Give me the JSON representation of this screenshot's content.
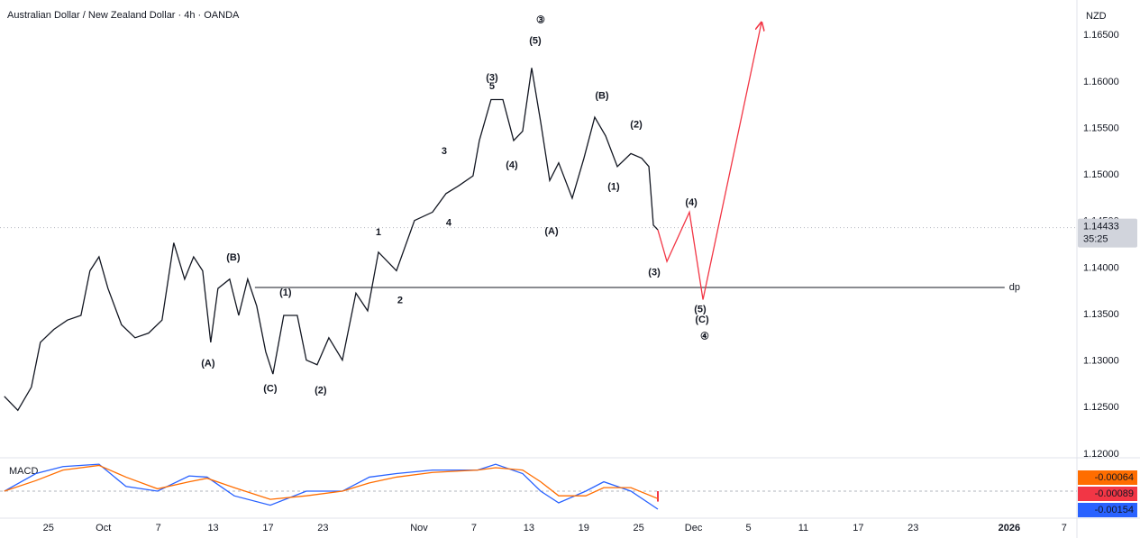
{
  "header": {
    "title": "Australian Dollar / New Zealand Dollar · 4h · OANDA",
    "currency": "NZD"
  },
  "chart_data": {
    "type": "line",
    "xlim": [
      -5.3,
      112.4
    ],
    "xticks": [
      {
        "value": 0,
        "label": "25"
      },
      {
        "value": 6,
        "label": "Oct"
      },
      {
        "value": 12,
        "label": "7"
      },
      {
        "value": 18,
        "label": "13"
      },
      {
        "value": 24,
        "label": "17"
      },
      {
        "value": 30,
        "label": "23"
      },
      {
        "value": 40.5,
        "label": "Nov"
      },
      {
        "value": 46.5,
        "label": "7"
      },
      {
        "value": 52.5,
        "label": "13"
      },
      {
        "value": 58.5,
        "label": "19"
      },
      {
        "value": 64.5,
        "label": "25"
      },
      {
        "value": 70.5,
        "label": "Dec"
      },
      {
        "value": 76.5,
        "label": "5"
      },
      {
        "value": 82.5,
        "label": "11"
      },
      {
        "value": 88.5,
        "label": "17"
      },
      {
        "value": 94.5,
        "label": "23"
      },
      {
        "value": 105,
        "label": "2026"
      },
      {
        "value": 111,
        "label": "7"
      }
    ],
    "ylim": [
      1.1196,
      1.1688
    ],
    "yticks": [
      {
        "value": 1.12,
        "label": "1.12000"
      },
      {
        "value": 1.125,
        "label": "1.12500"
      },
      {
        "value": 1.13,
        "label": "1.13000"
      },
      {
        "value": 1.135,
        "label": "1.13500"
      },
      {
        "value": 1.14,
        "label": "1.14000"
      },
      {
        "value": 1.145,
        "label": "1.14500"
      },
      {
        "value": 1.15,
        "label": "1.15000"
      },
      {
        "value": 1.155,
        "label": "1.15500"
      },
      {
        "value": 1.16,
        "label": "1.16000"
      },
      {
        "value": 1.165,
        "label": "1.16500"
      }
    ],
    "series": [
      {
        "color": "#131722",
        "x": [
          -4.83,
          -3.35,
          -1.87,
          -0.89,
          0.59,
          2.07,
          3.55,
          4.53,
          5.52,
          6.5,
          7.98,
          9.46,
          10.94,
          12.41,
          13.69,
          14.88,
          15.86,
          16.85,
          17.73,
          18.52,
          19.8,
          20.79,
          21.77,
          22.76,
          23.74,
          24.53,
          25.71,
          27.19,
          28.18,
          29.36,
          30.64,
          32.12,
          33.6,
          34.88,
          36.06,
          38.03,
          40,
          41.97,
          43.45,
          44.93,
          46.4,
          47.09,
          48.37,
          49.66,
          50.84,
          51.82,
          52.81,
          53.79,
          54.78,
          55.76,
          57.24,
          58.52,
          59.7,
          60.89,
          62.17,
          63.65,
          64.83,
          65.62,
          66.11,
          66.6
        ],
        "values": [
          1.1262,
          1.1247,
          1.1272,
          1.132,
          1.1334,
          1.1344,
          1.1349,
          1.1397,
          1.1412,
          1.1378,
          1.1339,
          1.1325,
          1.133,
          1.1344,
          1.1427,
          1.1388,
          1.1412,
          1.1397,
          1.132,
          1.1378,
          1.1388,
          1.1349,
          1.1388,
          1.1359,
          1.131,
          1.1286,
          1.1349,
          1.1349,
          1.1301,
          1.1296,
          1.1325,
          1.1301,
          1.1373,
          1.1354,
          1.1417,
          1.1397,
          1.1451,
          1.146,
          1.148,
          1.1489,
          1.1499,
          1.1537,
          1.1581,
          1.1581,
          1.1537,
          1.1547,
          1.1615,
          1.1557,
          1.1494,
          1.1513,
          1.1475,
          1.1518,
          1.1562,
          1.1542,
          1.1509,
          1.1523,
          1.1518,
          1.1509,
          1.1446,
          1.1441
        ]
      },
      {
        "color": "#f23645",
        "x": [
          66.6,
          67.59,
          70.05,
          71.53,
          77.93
        ],
        "values": [
          1.1441,
          1.1407,
          1.146,
          1.1366,
          1.1664
        ]
      }
    ],
    "current_price": {
      "value": 1.14433,
      "label": "1.14433",
      "timer": "35:25"
    },
    "level": {
      "label": "dp",
      "value": 1.1379,
      "x": [
        22.56,
        104.5
      ]
    },
    "annotations": [
      {
        "text": "③",
        "color": "#131722",
        "x": 53.79,
        "y": 1.1666
      },
      {
        "text": "(5)",
        "color": "#131722",
        "x": 53.2,
        "y": 1.1644
      },
      {
        "text": "(3)",
        "color": "#131722",
        "x": 48.47,
        "y": 1.1604
      },
      {
        "text": "5",
        "color": "#9c27b0",
        "x": 48.47,
        "y": 1.1595
      },
      {
        "text": "(B)",
        "color": "#f23645",
        "x": 60.49,
        "y": 1.1585
      },
      {
        "text": "(2)",
        "color": "#9c27b0",
        "x": 64.24,
        "y": 1.1554
      },
      {
        "text": "3",
        "color": "#9c27b0",
        "x": 43.25,
        "y": 1.1525
      },
      {
        "text": "(4)",
        "color": "#131722",
        "x": 50.64,
        "y": 1.151
      },
      {
        "text": "(1)",
        "color": "#9c27b0",
        "x": 61.77,
        "y": 1.1487
      },
      {
        "text": "(4)",
        "color": "#9c27b0",
        "x": 70.25,
        "y": 1.147
      },
      {
        "text": "1",
        "color": "#9c27b0",
        "x": 36.06,
        "y": 1.1438
      },
      {
        "text": "4",
        "color": "#9c27b0",
        "x": 43.74,
        "y": 1.1448
      },
      {
        "text": "(A)",
        "color": "#f23645",
        "x": 54.98,
        "y": 1.1439
      },
      {
        "text": "(B)",
        "color": "#f23645",
        "x": 20.2,
        "y": 1.1411
      },
      {
        "text": "(3)",
        "color": "#9c27b0",
        "x": 66.21,
        "y": 1.1395
      },
      {
        "text": "(1)",
        "color": "#131722",
        "x": 25.91,
        "y": 1.1373
      },
      {
        "text": "2",
        "color": "#9c27b0",
        "x": 38.42,
        "y": 1.1365
      },
      {
        "text": "(5)",
        "color": "#9c27b0",
        "x": 71.23,
        "y": 1.1355
      },
      {
        "text": "(C)",
        "color": "#f23645",
        "x": 71.43,
        "y": 1.1344
      },
      {
        "text": "④",
        "color": "#131722",
        "x": 71.72,
        "y": 1.1326
      },
      {
        "text": "(A)",
        "color": "#f23645",
        "x": 17.44,
        "y": 1.1297
      },
      {
        "text": "(C)",
        "color": "#f23645",
        "x": 24.24,
        "y": 1.127
      },
      {
        "text": "(2)",
        "color": "#131722",
        "x": 29.75,
        "y": 1.1268
      }
    ],
    "macd": {
      "title": "MACD",
      "ylim": [
        -0.00231,
        0.00285
      ],
      "series": [
        {
          "color": "#2962ff",
          "x": [
            -4.83,
            -1.38,
            1.58,
            5.52,
            8.47,
            11.92,
            15.37,
            17.34,
            20.3,
            24.24,
            28.18,
            32.12,
            35.07,
            38.03,
            41.97,
            46.9,
            48.87,
            51.82,
            53.79,
            55.76,
            58.72,
            60.69,
            63.65,
            66.6
          ],
          "values": [
            0,
            0.0015,
            0.0021,
            0.0023,
            0.0004,
            0,
            0.0013,
            0.0012,
            -0.0004,
            -0.0012,
            0,
            0,
            0.0012,
            0.0015,
            0.0018,
            0.0018,
            0.0023,
            0.0015,
            0,
            -0.001,
            0,
            0.0008,
            0,
            -0.00154
          ],
          "value_labels": [
            "-0.00154"
          ]
        },
        {
          "color": "#ff6d00",
          "x": [
            -4.83,
            -1.38,
            1.58,
            5.52,
            8.47,
            11.92,
            15.37,
            17.34,
            20.3,
            24.24,
            28.18,
            32.12,
            35.07,
            38.03,
            41.97,
            46.9,
            48.87,
            51.82,
            53.79,
            55.76,
            58.72,
            60.69,
            63.65,
            66.6
          ],
          "values": [
            0,
            0.0009,
            0.0018,
            0.0022,
            0.0012,
            0.0002,
            0.0008,
            0.0011,
            0.0003,
            -0.0007,
            -0.0004,
            0,
            0.0007,
            0.0012,
            0.0016,
            0.0018,
            0.002,
            0.0018,
            0.0008,
            -0.0004,
            -0.0004,
            0.0003,
            0.0003,
            -0.00064
          ],
          "value_labels": [
            "-0.00064"
          ]
        }
      ],
      "histogram": {
        "color": "#f23645",
        "x": [
          66.6
        ],
        "values": [
          -0.00089
        ],
        "value_labels": [
          "-0.00089"
        ]
      }
    }
  }
}
